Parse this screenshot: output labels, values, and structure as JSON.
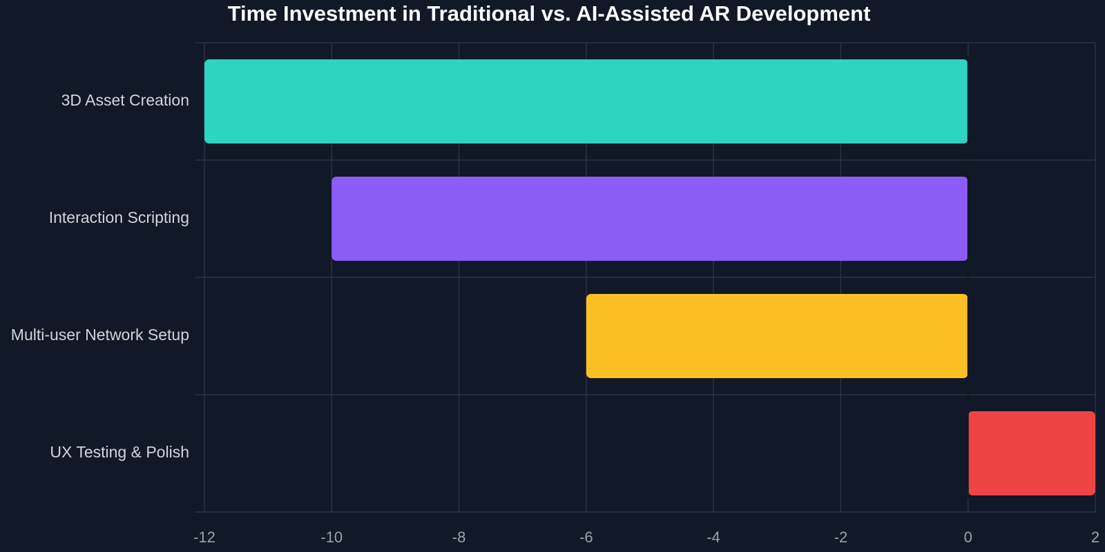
{
  "chart_data": {
    "type": "bar",
    "orientation": "horizontal",
    "title": "Time Investment in Traditional vs. AI-Assisted AR Development",
    "xlabel": "",
    "ylabel": "",
    "categories": [
      "3D Asset Creation",
      "Interaction Scripting",
      "Multi-user Network Setup",
      "UX Testing & Polish"
    ],
    "values": [
      -12,
      -10,
      -6,
      2
    ],
    "colors": [
      "#2dd4bf",
      "#8b5cf6",
      "#fbbf24",
      "#ef4444"
    ],
    "xlim": [
      -12,
      2
    ],
    "xticks": [
      -12,
      -10,
      -8,
      -6,
      -4,
      -2,
      0,
      2
    ],
    "grid": true,
    "legend": "none"
  }
}
